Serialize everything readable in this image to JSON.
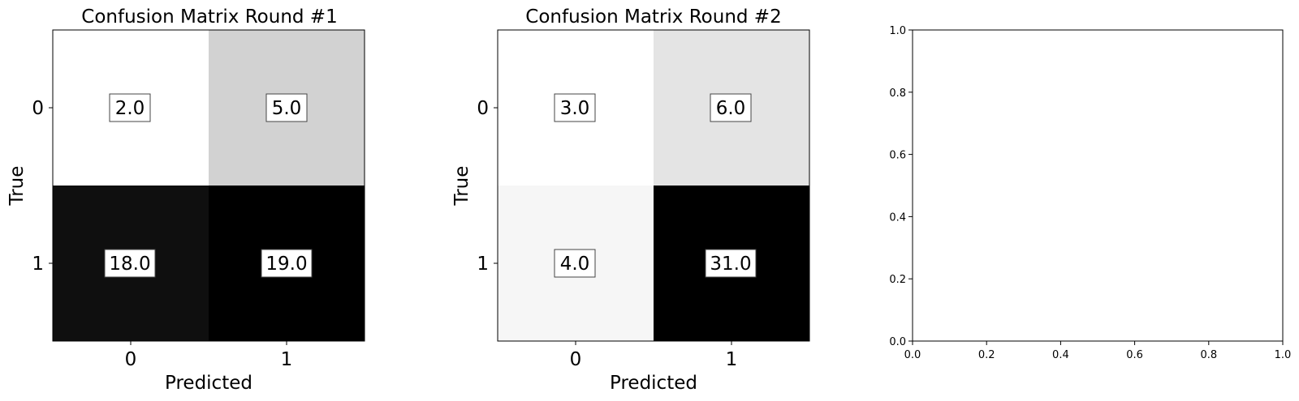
{
  "chart_data": [
    {
      "type": "heatmap",
      "title": "Confusion Matrix Round #1",
      "xlabel": "Predicted",
      "ylabel": "True",
      "x_categories": [
        "0",
        "1"
      ],
      "y_categories": [
        "0",
        "1"
      ],
      "values": [
        [
          2.0,
          5.0
        ],
        [
          18.0,
          19.0
        ]
      ],
      "value_labels": [
        [
          "2.0",
          "5.0"
        ],
        [
          "18.0",
          "19.0"
        ]
      ],
      "colormap": "white-to-black",
      "color_low": "#ffffff",
      "color_high": "#000000",
      "grid": false
    },
    {
      "type": "heatmap",
      "title": "Confusion Matrix Round #2",
      "xlabel": "Predicted",
      "ylabel": "True",
      "x_categories": [
        "0",
        "1"
      ],
      "y_categories": [
        "0",
        "1"
      ],
      "values": [
        [
          3.0,
          6.0
        ],
        [
          4.0,
          31.0
        ]
      ],
      "value_labels": [
        [
          "3.0",
          "6.0"
        ],
        [
          "4.0",
          "31.0"
        ]
      ],
      "colormap": "white-to-black",
      "color_low": "#ffffff",
      "color_high": "#000000",
      "grid": false
    },
    {
      "type": "scatter",
      "title": "",
      "xlabel": "",
      "ylabel": "",
      "xlim": [
        0.0,
        1.0
      ],
      "ylim": [
        0.0,
        1.0
      ],
      "xticks": [
        "0.0",
        "0.2",
        "0.4",
        "0.6",
        "0.8",
        "1.0"
      ],
      "yticks": [
        "0.0",
        "0.2",
        "0.4",
        "0.6",
        "0.8",
        "1.0"
      ],
      "series": [],
      "grid": false
    }
  ]
}
